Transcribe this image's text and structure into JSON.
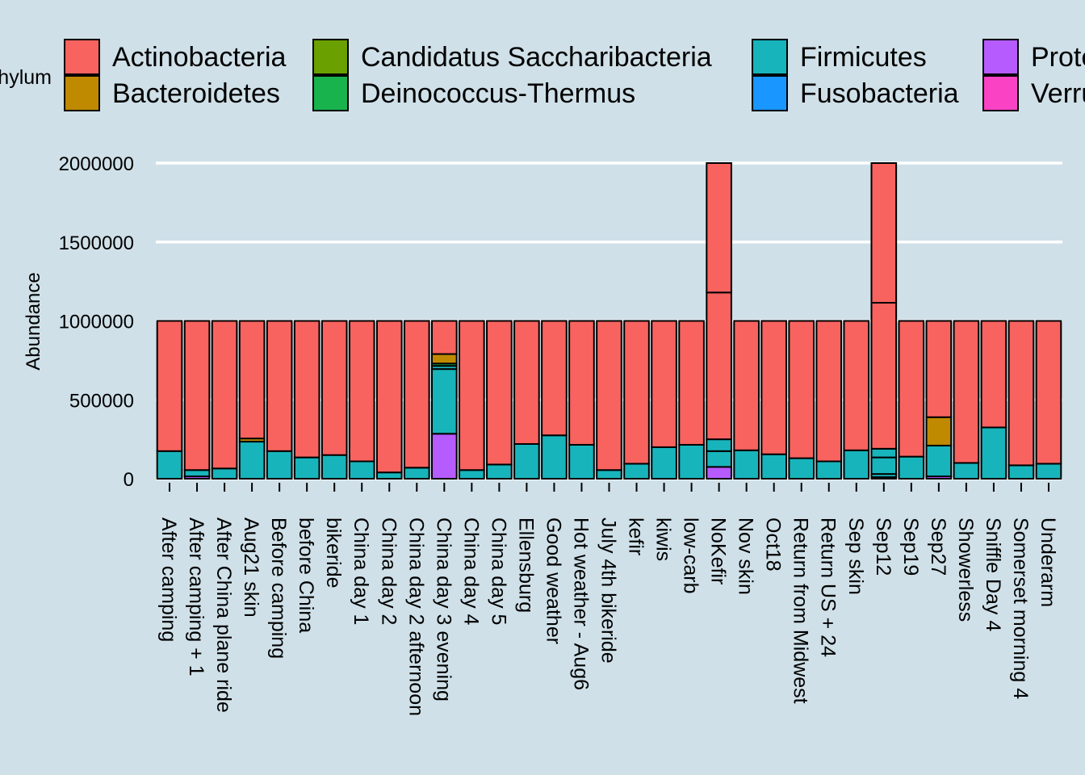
{
  "chart_data": {
    "type": "bar",
    "stacked": true,
    "legend_title": "Phylum",
    "legend_position": "top",
    "ylabel": "Abundance",
    "xlabel": "",
    "ylim": [
      0,
      2000000
    ],
    "yticks": [
      0,
      500000,
      1000000,
      1500000,
      2000000
    ],
    "ytick_labels": [
      "0",
      "500000",
      "1000000",
      "1500000",
      "2000000"
    ],
    "grid": true,
    "colors": {
      "background": "#cfe0e8",
      "grid": "#ffffff",
      "outline": "#000000"
    },
    "legend": [
      {
        "name": "Actinobacteria",
        "color": "#f8635f"
      },
      {
        "name": "Bacteroidetes",
        "color": "#c08a00"
      },
      {
        "name": "Candidatus Saccharibacteria",
        "color": "#6aa100"
      },
      {
        "name": "Deinococcus-Thermus",
        "color": "#19b34e"
      },
      {
        "name": "Firmicutes",
        "color": "#18b4bb"
      },
      {
        "name": "Fusobacteria",
        "color": "#1996ff"
      },
      {
        "name": "Proteobacteria",
        "color": "#b65cff"
      },
      {
        "name": "Verrucomicrobia",
        "color": "#fa43c4"
      }
    ],
    "categories": [
      "After camping",
      "After camping + 1",
      "After China plane ride",
      "Aug21 skin",
      "Before camping",
      "before China",
      "bikeride",
      "China day 1",
      "China day 2",
      "China day 2 afternoon",
      "China day 3 evening",
      "China day 4",
      "China day 5",
      "Ellensburg",
      "Good weather",
      "Hot weather - Aug6",
      "July 4th bikeride",
      "kefir",
      "kiwis",
      "low-carb",
      "NoKefir",
      "Nov skin",
      "Oct18",
      "Return from Midwest",
      "Return US + 24",
      "Sep skin",
      "Sep12",
      "Sep19",
      "Sep27",
      "Showerless",
      "Sniffle Day 4",
      "Somerset morning 4",
      "Underarm"
    ],
    "samples": [
      {
        "segments": [
          {
            "phylum": "Firmicutes",
            "values": [
              175000
            ]
          },
          {
            "phylum": "Actinobacteria",
            "values": [
              825000
            ]
          }
        ]
      },
      {
        "segments": [
          {
            "phylum": "Proteobacteria",
            "values": [
              15000
            ]
          },
          {
            "phylum": "Firmicutes",
            "values": [
              40000
            ]
          },
          {
            "phylum": "Actinobacteria",
            "values": [
              945000
            ]
          }
        ]
      },
      {
        "segments": [
          {
            "phylum": "Firmicutes",
            "values": [
              65000
            ]
          },
          {
            "phylum": "Actinobacteria",
            "values": [
              935000
            ]
          }
        ]
      },
      {
        "segments": [
          {
            "phylum": "Firmicutes",
            "values": [
              235000
            ]
          },
          {
            "phylum": "Bacteroidetes",
            "values": [
              20000
            ]
          },
          {
            "phylum": "Actinobacteria",
            "values": [
              745000
            ]
          }
        ]
      },
      {
        "segments": [
          {
            "phylum": "Firmicutes",
            "values": [
              175000
            ]
          },
          {
            "phylum": "Actinobacteria",
            "values": [
              825000
            ]
          }
        ]
      },
      {
        "segments": [
          {
            "phylum": "Firmicutes",
            "values": [
              135000
            ]
          },
          {
            "phylum": "Actinobacteria",
            "values": [
              865000
            ]
          }
        ]
      },
      {
        "segments": [
          {
            "phylum": "Firmicutes",
            "values": [
              150000
            ]
          },
          {
            "phylum": "Actinobacteria",
            "values": [
              850000
            ]
          }
        ]
      },
      {
        "segments": [
          {
            "phylum": "Firmicutes",
            "values": [
              110000
            ]
          },
          {
            "phylum": "Actinobacteria",
            "values": [
              890000
            ]
          }
        ]
      },
      {
        "segments": [
          {
            "phylum": "Firmicutes",
            "values": [
              40000
            ]
          },
          {
            "phylum": "Actinobacteria",
            "values": [
              960000
            ]
          }
        ]
      },
      {
        "segments": [
          {
            "phylum": "Firmicutes",
            "values": [
              70000
            ]
          },
          {
            "phylum": "Actinobacteria",
            "values": [
              930000
            ]
          }
        ]
      },
      {
        "segments": [
          {
            "phylum": "Proteobacteria",
            "values": [
              285000
            ]
          },
          {
            "phylum": "Firmicutes",
            "values": [
              410000,
              20000
            ]
          },
          {
            "phylum": "Deinococcus-Thermus",
            "values": [
              15000
            ]
          },
          {
            "phylum": "Bacteroidetes",
            "values": [
              60000
            ]
          },
          {
            "phylum": "Actinobacteria",
            "values": [
              210000
            ]
          }
        ]
      },
      {
        "segments": [
          {
            "phylum": "Firmicutes",
            "values": [
              55000
            ]
          },
          {
            "phylum": "Actinobacteria",
            "values": [
              945000
            ]
          }
        ]
      },
      {
        "segments": [
          {
            "phylum": "Firmicutes",
            "values": [
              90000
            ]
          },
          {
            "phylum": "Actinobacteria",
            "values": [
              910000
            ]
          }
        ]
      },
      {
        "segments": [
          {
            "phylum": "Firmicutes",
            "values": [
              220000
            ]
          },
          {
            "phylum": "Actinobacteria",
            "values": [
              780000
            ]
          }
        ]
      },
      {
        "segments": [
          {
            "phylum": "Firmicutes",
            "values": [
              275000
            ]
          },
          {
            "phylum": "Actinobacteria",
            "values": [
              725000
            ]
          }
        ]
      },
      {
        "segments": [
          {
            "phylum": "Firmicutes",
            "values": [
              215000
            ]
          },
          {
            "phylum": "Actinobacteria",
            "values": [
              785000
            ]
          }
        ]
      },
      {
        "segments": [
          {
            "phylum": "Firmicutes",
            "values": [
              55000
            ]
          },
          {
            "phylum": "Actinobacteria",
            "values": [
              945000
            ]
          }
        ]
      },
      {
        "segments": [
          {
            "phylum": "Firmicutes",
            "values": [
              95000
            ]
          },
          {
            "phylum": "Actinobacteria",
            "values": [
              905000
            ]
          }
        ]
      },
      {
        "segments": [
          {
            "phylum": "Firmicutes",
            "values": [
              200000
            ]
          },
          {
            "phylum": "Actinobacteria",
            "values": [
              800000
            ]
          }
        ]
      },
      {
        "segments": [
          {
            "phylum": "Firmicutes",
            "values": [
              215000
            ]
          },
          {
            "phylum": "Actinobacteria",
            "values": [
              785000
            ]
          }
        ]
      },
      {
        "segments": [
          {
            "phylum": "Proteobacteria",
            "values": [
              75000
            ]
          },
          {
            "phylum": "Firmicutes",
            "values": [
              100000,
              75000
            ]
          },
          {
            "phylum": "Actinobacteria",
            "values": [
              930000,
              820000
            ]
          }
        ]
      },
      {
        "segments": [
          {
            "phylum": "Firmicutes",
            "values": [
              180000
            ]
          },
          {
            "phylum": "Actinobacteria",
            "values": [
              820000
            ]
          }
        ]
      },
      {
        "segments": [
          {
            "phylum": "Firmicutes",
            "values": [
              155000
            ]
          },
          {
            "phylum": "Actinobacteria",
            "values": [
              845000
            ]
          }
        ]
      },
      {
        "segments": [
          {
            "phylum": "Firmicutes",
            "values": [
              130000
            ]
          },
          {
            "phylum": "Actinobacteria",
            "values": [
              870000
            ]
          }
        ]
      },
      {
        "segments": [
          {
            "phylum": "Firmicutes",
            "values": [
              110000
            ]
          },
          {
            "phylum": "Actinobacteria",
            "values": [
              890000
            ]
          }
        ]
      },
      {
        "segments": [
          {
            "phylum": "Firmicutes",
            "values": [
              180000
            ]
          },
          {
            "phylum": "Actinobacteria",
            "values": [
              820000
            ]
          }
        ]
      },
      {
        "segments": [
          {
            "phylum": "Proteobacteria",
            "values": [
              10000
            ]
          },
          {
            "phylum": "Firmicutes",
            "values": [
              20000,
              105000,
              55000
            ]
          },
          {
            "phylum": "Actinobacteria",
            "values": [
              925000,
              885000
            ]
          }
        ]
      },
      {
        "segments": [
          {
            "phylum": "Firmicutes",
            "values": [
              140000
            ]
          },
          {
            "phylum": "Actinobacteria",
            "values": [
              860000
            ]
          }
        ]
      },
      {
        "segments": [
          {
            "phylum": "Proteobacteria",
            "values": [
              15000
            ]
          },
          {
            "phylum": "Firmicutes",
            "values": [
              195000
            ]
          },
          {
            "phylum": "Bacteroidetes",
            "values": [
              180000
            ]
          },
          {
            "phylum": "Actinobacteria",
            "values": [
              610000
            ]
          }
        ]
      },
      {
        "segments": [
          {
            "phylum": "Firmicutes",
            "values": [
              100000
            ]
          },
          {
            "phylum": "Actinobacteria",
            "values": [
              900000
            ]
          }
        ]
      },
      {
        "segments": [
          {
            "phylum": "Firmicutes",
            "values": [
              325000
            ]
          },
          {
            "phylum": "Actinobacteria",
            "values": [
              675000
            ]
          }
        ]
      },
      {
        "segments": [
          {
            "phylum": "Firmicutes",
            "values": [
              85000
            ]
          },
          {
            "phylum": "Actinobacteria",
            "values": [
              915000
            ]
          }
        ]
      },
      {
        "segments": [
          {
            "phylum": "Firmicutes",
            "values": [
              95000
            ]
          },
          {
            "phylum": "Actinobacteria",
            "values": [
              905000
            ]
          }
        ]
      }
    ]
  }
}
